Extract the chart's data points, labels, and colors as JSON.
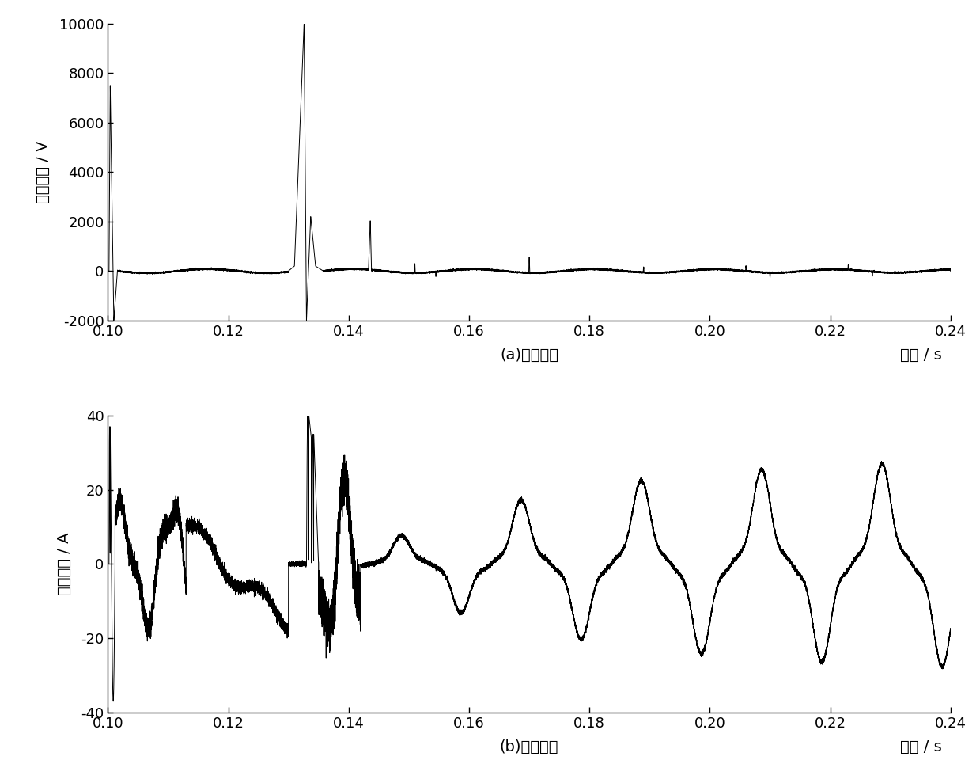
{
  "xlim": [
    0.1,
    0.24
  ],
  "voltage_ylim": [
    -2000,
    10000
  ],
  "current_ylim": [
    -40,
    40
  ],
  "voltage_yticks": [
    -2000,
    0,
    2000,
    4000,
    6000,
    8000,
    10000
  ],
  "current_yticks": [
    -40,
    -20,
    0,
    20,
    40
  ],
  "xticks": [
    0.1,
    0.12,
    0.14,
    0.16,
    0.18,
    0.2,
    0.22,
    0.24
  ],
  "voltage_ylabel": "弧道电压 / V",
  "current_ylabel": "弧道电流 / A",
  "voltage_xlabel": "(a)电压波形",
  "current_xlabel": "(b)电流波形",
  "time_label": "时间 / s",
  "line_color": "#000000",
  "background_color": "#ffffff"
}
